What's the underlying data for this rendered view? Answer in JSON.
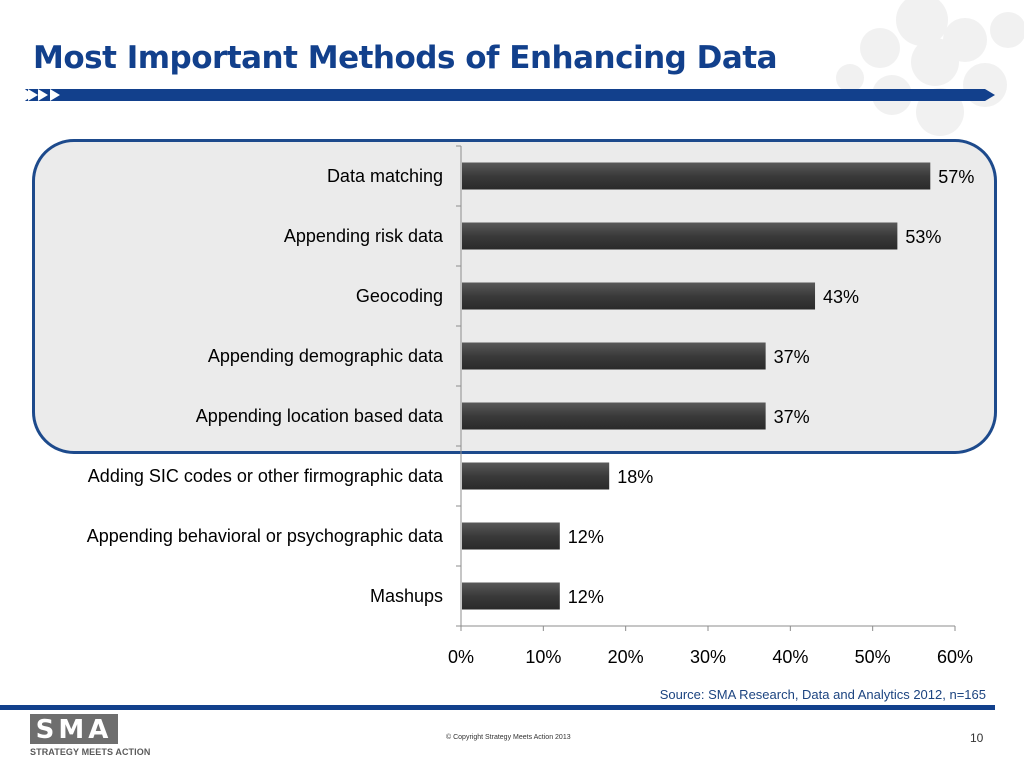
{
  "slide": {
    "title": "Most Important Methods of Enhancing Data",
    "source": "Source: SMA Research, Data and Analytics 2012, n=165",
    "copyright": "© Copyright Strategy Meets Action 2013",
    "page_number": "10",
    "logo_text": "SMA",
    "logo_tagline": "STRATEGY MEETS ACTION"
  },
  "colors": {
    "title": "#12408c",
    "rule": "#12408c",
    "bar": "#3f3f3f",
    "highlight_border": "#1d4a8c",
    "highlight_fill": "#ebebeb"
  },
  "chart_data": {
    "type": "bar",
    "orientation": "horizontal",
    "categories": [
      "Data matching",
      "Appending risk data",
      "Geocoding",
      "Appending demographic data",
      "Appending location based data",
      "Adding SIC codes or other firmographic data",
      "Appending behavioral or psychographic data",
      "Mashups"
    ],
    "values": [
      57,
      53,
      43,
      37,
      37,
      18,
      12,
      12
    ],
    "data_labels": [
      "57%",
      "53%",
      "43%",
      "37%",
      "37%",
      "18%",
      "12%",
      "12%"
    ],
    "x_ticks": [
      "0%",
      "10%",
      "20%",
      "30%",
      "40%",
      "50%",
      "60%"
    ],
    "xlim": [
      0,
      60
    ],
    "grid": false,
    "highlighted_categories": [
      0,
      1,
      2,
      3,
      4
    ]
  }
}
